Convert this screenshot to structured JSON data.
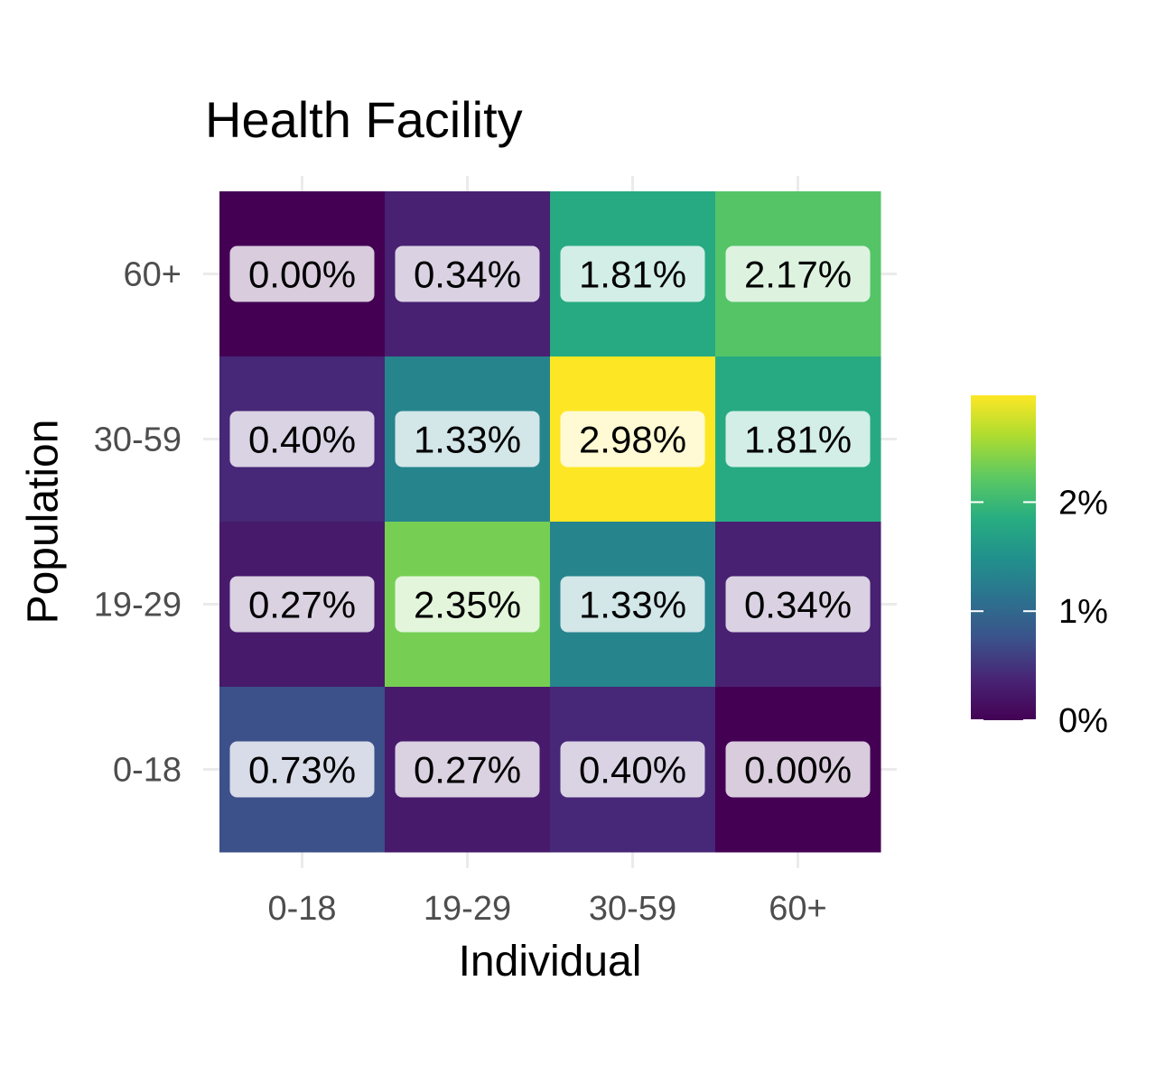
{
  "chart_data": {
    "type": "heatmap",
    "title": "Health Facility",
    "xlabel": "Individual",
    "ylabel": "Population",
    "x_categories": [
      "0-18",
      "19-29",
      "30-59",
      "60+"
    ],
    "y_categories": [
      "0-18",
      "19-29",
      "30-59",
      "60+"
    ],
    "cells": [
      {
        "x": "0-18",
        "y": "60+",
        "value": 0.0,
        "label": "0.00%"
      },
      {
        "x": "19-29",
        "y": "60+",
        "value": 0.34,
        "label": "0.34%"
      },
      {
        "x": "30-59",
        "y": "60+",
        "value": 1.81,
        "label": "1.81%"
      },
      {
        "x": "60+",
        "y": "60+",
        "value": 2.17,
        "label": "2.17%"
      },
      {
        "x": "0-18",
        "y": "30-59",
        "value": 0.4,
        "label": "0.40%"
      },
      {
        "x": "19-29",
        "y": "30-59",
        "value": 1.33,
        "label": "1.33%"
      },
      {
        "x": "30-59",
        "y": "30-59",
        "value": 2.98,
        "label": "2.98%"
      },
      {
        "x": "60+",
        "y": "30-59",
        "value": 1.81,
        "label": "1.81%"
      },
      {
        "x": "0-18",
        "y": "19-29",
        "value": 0.27,
        "label": "0.27%"
      },
      {
        "x": "19-29",
        "y": "19-29",
        "value": 2.35,
        "label": "2.35%"
      },
      {
        "x": "30-59",
        "y": "19-29",
        "value": 1.33,
        "label": "1.33%"
      },
      {
        "x": "60+",
        "y": "19-29",
        "value": 0.34,
        "label": "0.34%"
      },
      {
        "x": "0-18",
        "y": "0-18",
        "value": 0.73,
        "label": "0.73%"
      },
      {
        "x": "19-29",
        "y": "0-18",
        "value": 0.27,
        "label": "0.27%"
      },
      {
        "x": "30-59",
        "y": "0-18",
        "value": 0.4,
        "label": "0.40%"
      },
      {
        "x": "60+",
        "y": "0-18",
        "value": 0.0,
        "label": "0.00%"
      }
    ],
    "color_scale": {
      "name": "viridis",
      "min": 0.0,
      "max": 2.98,
      "ticks": [
        {
          "value": 0,
          "label": "0%"
        },
        {
          "value": 1,
          "label": "1%"
        },
        {
          "value": 2,
          "label": "2%"
        }
      ]
    },
    "legend_position": "right",
    "grid": true
  }
}
